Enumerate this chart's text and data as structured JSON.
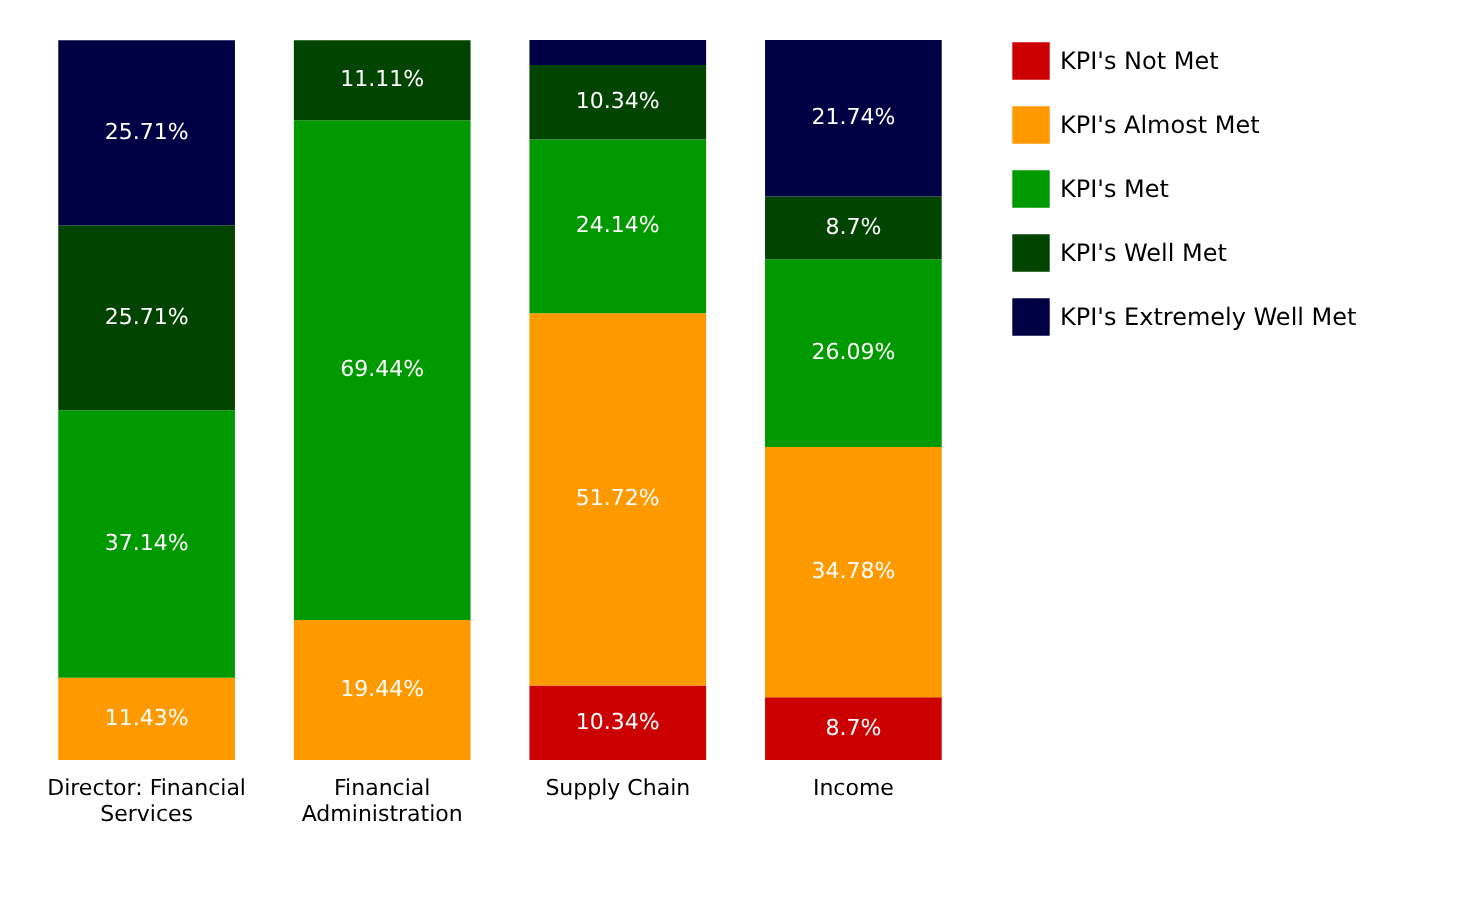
{
  "chart_data": {
    "type": "bar",
    "stacked": true,
    "legend": "right",
    "categories": [
      "Director: Financial Services",
      "Financial Administration",
      "Supply Chain",
      "Income"
    ],
    "series": [
      {
        "name": "KPI's Not Met",
        "color": "#cc0000",
        "values": [
          null,
          null,
          10.34,
          8.7
        ],
        "value_labels": [
          null,
          null,
          "10.34%",
          "8.7%"
        ]
      },
      {
        "name": "KPI's Almost Met",
        "color": "#ff9900",
        "values": [
          11.43,
          19.44,
          51.72,
          34.78
        ],
        "value_labels": [
          "11.43%",
          "19.44%",
          "51.72%",
          "34.78%"
        ]
      },
      {
        "name": "KPI's Met",
        "color": "#009900",
        "values": [
          37.14,
          69.44,
          24.14,
          26.09
        ],
        "value_labels": [
          "37.14%",
          "69.44%",
          "24.14%",
          "26.09%"
        ]
      },
      {
        "name": "KPI's Well Met",
        "color": "#004400",
        "values": [
          25.71,
          11.11,
          10.34,
          8.7
        ],
        "value_labels": [
          "25.71%",
          "11.11%",
          "10.34%",
          "8.7%"
        ]
      },
      {
        "name": "KPI's Extremely Well Met",
        "color": "#000044",
        "values": [
          25.71,
          null,
          3.46,
          21.74
        ],
        "value_labels": [
          "25.71%",
          null,
          null,
          "21.74%"
        ]
      }
    ]
  }
}
